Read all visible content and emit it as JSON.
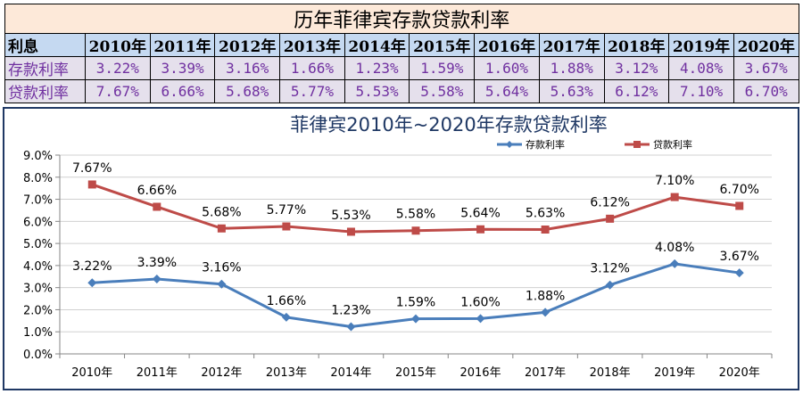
{
  "table": {
    "title": "历年菲律宾存款贷款利率",
    "header_label": "利息",
    "years": [
      "2010年",
      "2011年",
      "2012年",
      "2013年",
      "2014年",
      "2015年",
      "2016年",
      "2017年",
      "2018年",
      "2019年",
      "2020年"
    ],
    "rows": [
      {
        "label": "存款利率",
        "values": [
          "3.22%",
          "3.39%",
          "3.16%",
          "1.66%",
          "1.23%",
          "1.59%",
          "1.60%",
          "1.88%",
          "3.12%",
          "4.08%",
          "3.67%"
        ]
      },
      {
        "label": "贷款利率",
        "values": [
          "7.67%",
          "6.66%",
          "5.68%",
          "5.77%",
          "5.53%",
          "5.58%",
          "5.64%",
          "5.63%",
          "6.12%",
          "7.10%",
          "6.70%"
        ]
      }
    ]
  },
  "chart_data": {
    "type": "line",
    "title": "菲律宾2010年~2020年存款贷款利率",
    "categories": [
      "2010年",
      "2011年",
      "2012年",
      "2013年",
      "2014年",
      "2015年",
      "2016年",
      "2017年",
      "2018年",
      "2019年",
      "2020年"
    ],
    "ylim": [
      0,
      9
    ],
    "yticks": [
      "0.0%",
      "1.0%",
      "2.0%",
      "3.0%",
      "4.0%",
      "5.0%",
      "6.0%",
      "7.0%",
      "8.0%",
      "9.0%"
    ],
    "grid": true,
    "legend_position": "top-right",
    "series": [
      {
        "name": "存款利率",
        "color": "#4a7ebb",
        "marker": "diamond",
        "values": [
          3.22,
          3.39,
          3.16,
          1.66,
          1.23,
          1.59,
          1.6,
          1.88,
          3.12,
          4.08,
          3.67
        ],
        "labels": [
          "3.22%",
          "3.39%",
          "3.16%",
          "1.66%",
          "1.23%",
          "1.59%",
          "1.60%",
          "1.88%",
          "3.12%",
          "4.08%",
          "3.67%"
        ]
      },
      {
        "name": "贷款利率",
        "color": "#be4b48",
        "marker": "square",
        "values": [
          7.67,
          6.66,
          5.68,
          5.77,
          5.53,
          5.58,
          5.64,
          5.63,
          6.12,
          7.1,
          6.7
        ],
        "labels": [
          "7.67%",
          "6.66%",
          "5.68%",
          "5.77%",
          "5.53%",
          "5.58%",
          "5.64%",
          "5.63%",
          "6.12%",
          "7.10%",
          "6.70%"
        ]
      }
    ]
  }
}
